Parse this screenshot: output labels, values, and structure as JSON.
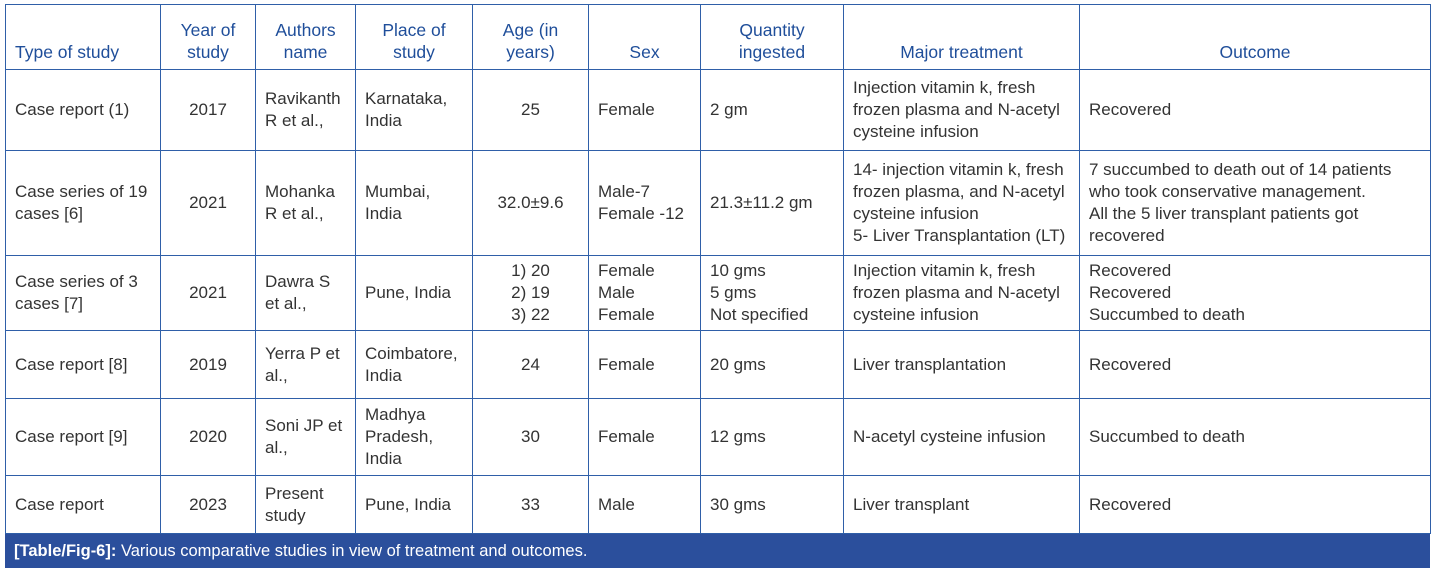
{
  "headers": [
    "Type of study",
    "Year of study",
    "Authors name",
    "Place of study",
    "Age (in years)",
    "Sex",
    "Quantity ingested",
    "Major treatment",
    "Outcome"
  ],
  "rows": [
    [
      "Case report (1)",
      "2017",
      "Ravikanth R et al.,",
      "Karnataka, India",
      "25",
      "Female",
      "2 gm",
      "Injection vitamin k, fresh frozen plasma and N-acetyl cysteine infusion",
      "Recovered"
    ],
    [
      "Case series of 19 cases [6]",
      "2021",
      "Mohanka R et al.,",
      "Mumbai, India",
      "32.0±9.6",
      "Male-7\nFemale -12",
      "21.3±11.2 gm",
      "14- injection vitamin k, fresh frozen plasma, and N-acetyl cysteine infusion\n5- Liver Transplantation (LT)",
      "7 succumbed to death out of 14 patients who took conservative management.\nAll the 5 liver transplant patients got recovered"
    ],
    [
      "Case series of 3 cases [7]",
      "2021",
      "Dawra S et al.,",
      "Pune, India",
      "1) 20\n2) 19\n3) 22",
      "Female\nMale\nFemale",
      "10 gms\n5 gms\nNot specified",
      "Injection vitamin k, fresh frozen plasma and N-acetyl cysteine infusion",
      "Recovered\nRecovered\nSuccumbed to death"
    ],
    [
      "Case report [8]",
      "2019",
      "Yerra P et al.,",
      "Coimbatore, India",
      "24",
      "Female",
      "20 gms",
      "Liver transplantation",
      "Recovered"
    ],
    [
      "Case report [9]",
      "2020",
      "Soni JP et al.,",
      "Madhya Pradesh, India",
      "30",
      "Female",
      "12 gms",
      "N-acetyl cysteine infusion",
      "Succumbed to death"
    ],
    [
      "Case report",
      "2023",
      "Present study",
      "Pune, India",
      "33",
      "Male",
      "30 gms",
      "Liver transplant",
      "Recovered"
    ]
  ],
  "caption": {
    "label": "[Table/Fig-6]:",
    "text": " Various comparative studies in view of treatment and outcomes."
  }
}
